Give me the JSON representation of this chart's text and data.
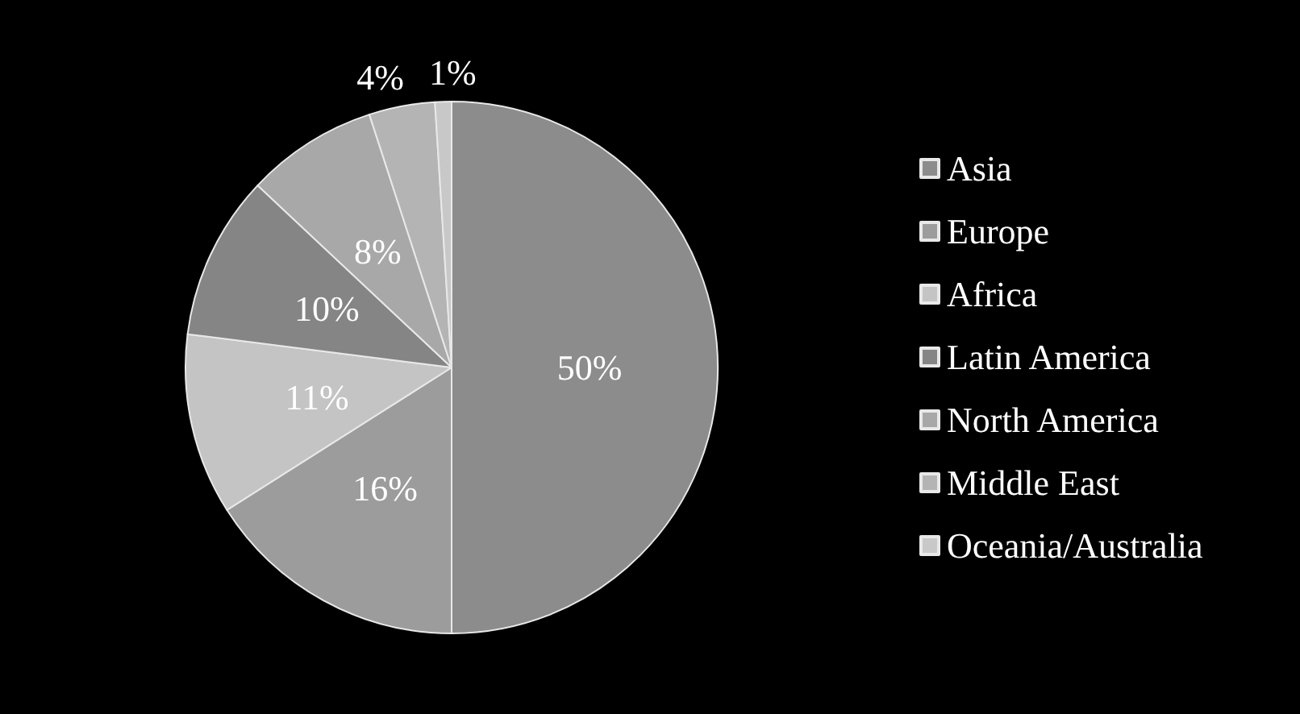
{
  "chart_data": {
    "type": "pie",
    "categories": [
      "Asia",
      "Europe",
      "Africa",
      "Latin America",
      "North America",
      "Middle East",
      "Oceania/Australia"
    ],
    "values": [
      50,
      16,
      11,
      10,
      8,
      4,
      1
    ],
    "colors": [
      "#8c8c8c",
      "#9c9c9c",
      "#c4c4c4",
      "#858585",
      "#a8a8a8",
      "#b4b4b4",
      "#c8c8c8"
    ],
    "value_labels": [
      "50%",
      "16%",
      "11%",
      "10%",
      "8%",
      "4%",
      "1%"
    ],
    "legend": "right"
  }
}
